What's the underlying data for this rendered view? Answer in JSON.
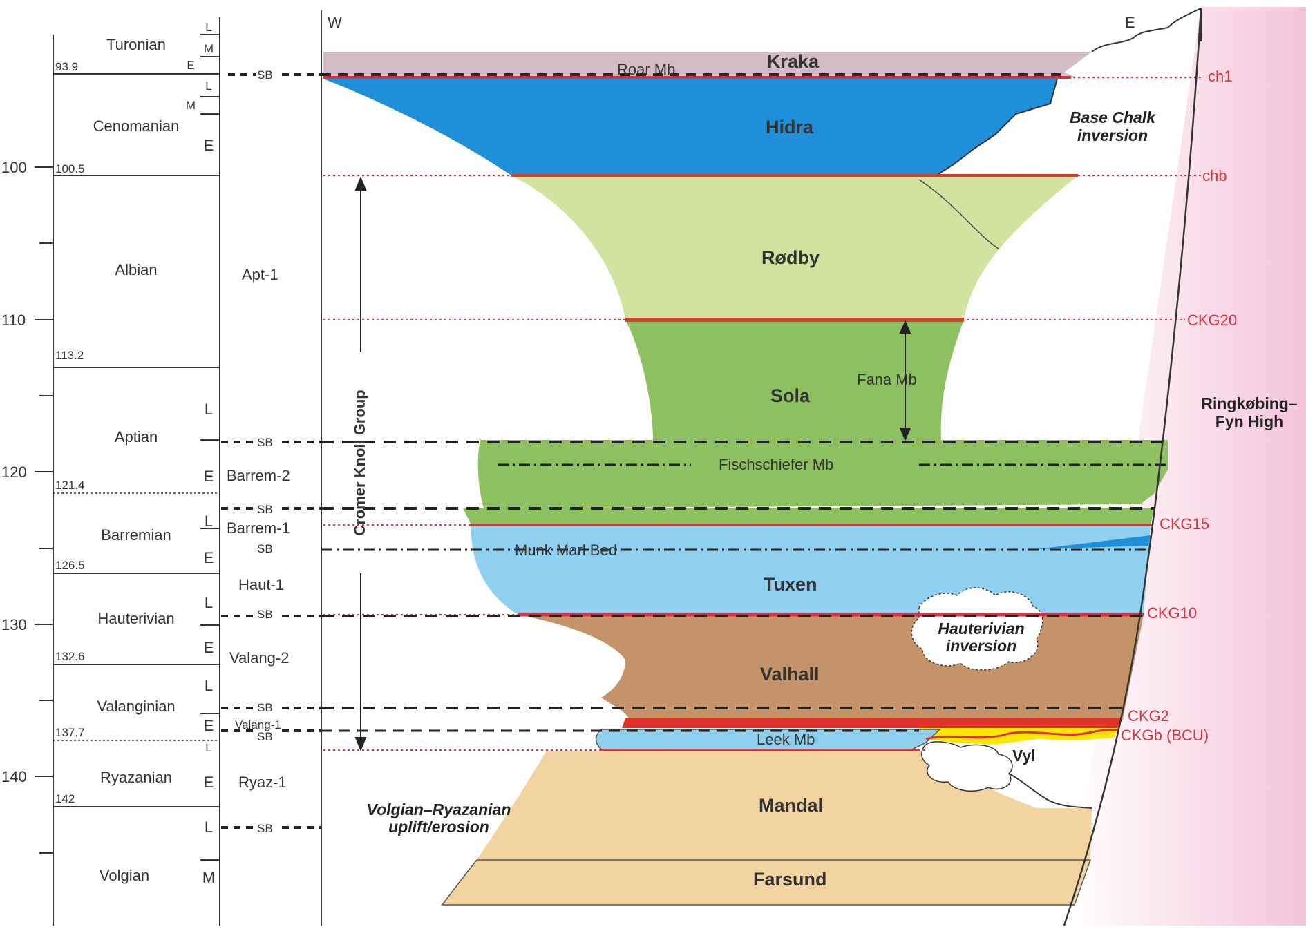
{
  "age_axis": {
    "ticks": [
      "100",
      "110",
      "120",
      "130",
      "140"
    ],
    "boundary_ages": [
      "93.9",
      "100.5",
      "113.2",
      "121.4",
      "126.5",
      "132.6",
      "137.7",
      "142"
    ]
  },
  "stages": [
    {
      "name": "Turonian",
      "sub": [
        "L",
        "M",
        "E"
      ]
    },
    {
      "name": "Cenomanian",
      "sub": [
        "L",
        "M",
        "E"
      ]
    },
    {
      "name": "Albian",
      "sub": []
    },
    {
      "name": "Aptian",
      "sub": [
        "L",
        "E"
      ]
    },
    {
      "name": "Barremian",
      "sub": [
        "L",
        "E"
      ]
    },
    {
      "name": "Hauterivian",
      "sub": [
        "L",
        "E"
      ]
    },
    {
      "name": "Valanginian",
      "sub": [
        "L",
        "E"
      ]
    },
    {
      "name": "Ryazanian",
      "sub": [
        "L",
        "E"
      ]
    },
    {
      "name": "Volgian",
      "sub": [
        "L",
        "M"
      ]
    }
  ],
  "sequences": [
    "Apt-1",
    "Barrem-2",
    "Barrem-1",
    "Haut-1",
    "Valang-2",
    "Valang-1",
    "Ryaz-1"
  ],
  "sb_label": "SB",
  "group_label": "Cromer Knoll Group",
  "compass": {
    "west": "W",
    "east": "E"
  },
  "units": {
    "kraka": "Kraka",
    "roar": "Roar Mb",
    "hidra": "Hidra",
    "rodby": "Rødby",
    "sola": "Sola",
    "fischschiefer": "Fischschiefer Mb",
    "fana": "Fana Mb",
    "munk": "Munk Marl Bed",
    "tuxen": "Tuxen",
    "valhall": "Valhall",
    "leek": "Leek Mb",
    "vyl": "Vyl",
    "mandal": "Mandal",
    "farsund": "Farsund"
  },
  "horizons": [
    "ch1",
    "chb",
    "CKG20",
    "CKG15",
    "CKG10",
    "CKG2",
    "CKGb (BCU)"
  ],
  "annotations": {
    "base_chalk_1": "Base Chalk",
    "base_chalk_2": "inversion",
    "haut_inv_1": "Hauterivian",
    "haut_inv_2": "inversion",
    "volg_1": "Volgian–Ryazanian",
    "volg_2": "uplift/erosion",
    "high_1": "Ringkøbing–",
    "high_2": "Fyn High"
  },
  "colors": {
    "kraka": "#d4bcc6",
    "hidra": "#1e8fd8",
    "rodby": "#d2e3a0",
    "sola": "#8cc060",
    "tuxen": "#8fd0f0",
    "valhall": "#c49368",
    "leek": "#8fcfee",
    "mandal": "#f2d4a0",
    "farsund": "#f2d4a0",
    "horizon": "#e0303a",
    "high": "#f7d2e2"
  }
}
